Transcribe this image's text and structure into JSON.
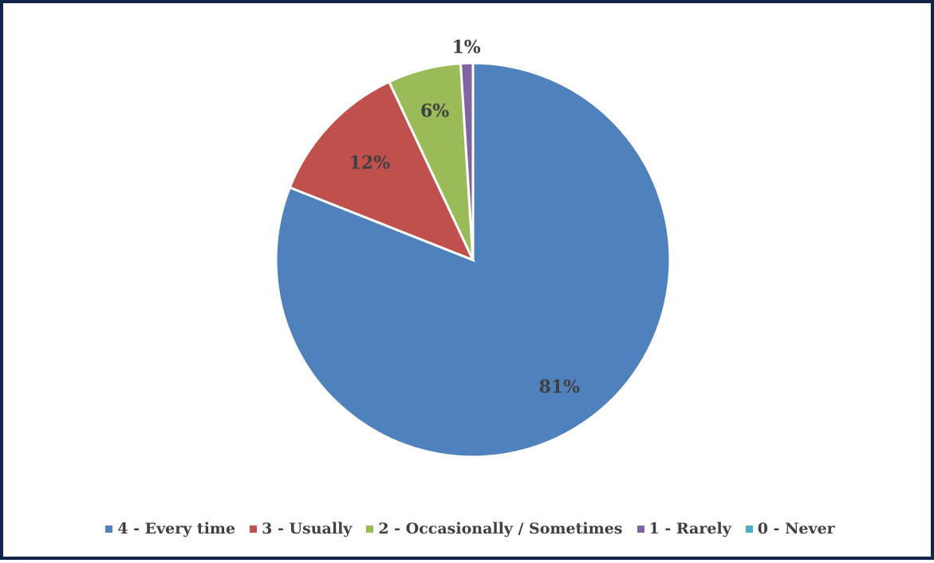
{
  "chart_data": {
    "type": "pie",
    "title": "",
    "slices": [
      {
        "name": "4 - Every time",
        "value": 81,
        "label": "81%",
        "color": "#4f81bd"
      },
      {
        "name": "3 - Usually",
        "value": 12,
        "label": "12%",
        "color": "#c0504d"
      },
      {
        "name": "2 - Occasionally / Sometimes",
        "value": 6,
        "label": "6%",
        "color": "#9bbb59"
      },
      {
        "name": "1 - Rarely",
        "value": 1,
        "label": "1%",
        "color": "#8064a2"
      },
      {
        "name": "0 - Never",
        "value": 0,
        "label": "",
        "color": "#4bacc6"
      }
    ],
    "legend_position": "bottom"
  },
  "legend": {
    "items": [
      {
        "label": "4 - Every time",
        "color": "#4f81bd"
      },
      {
        "label": "3 - Usually",
        "color": "#c0504d"
      },
      {
        "label": "2 - Occasionally / Sometimes",
        "color": "#9bbb59"
      },
      {
        "label": "1 - Rarely",
        "color": "#8064a2"
      },
      {
        "label": "0 - Never",
        "color": "#4bacc6"
      }
    ]
  }
}
